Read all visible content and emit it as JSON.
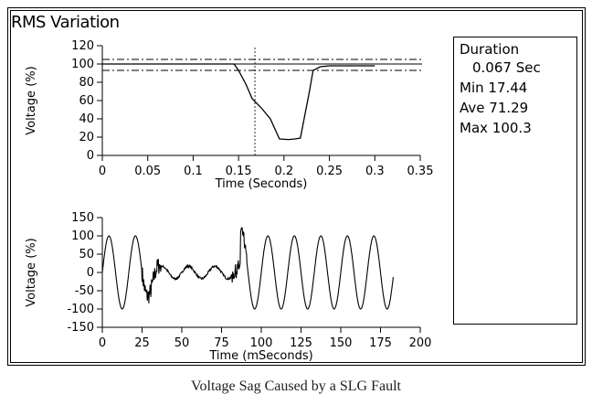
{
  "panel_title": "RMS Variation",
  "info": {
    "duration_label": "Duration",
    "duration_value": "0.067 Sec",
    "min_label": "Min",
    "min_value": "17.44",
    "ave_label": "Ave",
    "ave_value": "71.29",
    "max_label": "Max",
    "max_value": "100.3"
  },
  "caption": "Voltage Sag Caused by a SLG Fault",
  "chart_data": [
    {
      "type": "line",
      "title": "",
      "xlabel": "Time (Seconds)",
      "ylabel": "Voltage (%)",
      "xlim": [
        0,
        0.35
      ],
      "ylim": [
        0,
        120
      ],
      "x_ticks": [
        0,
        0.05,
        0.1,
        0.15,
        0.2,
        0.25,
        0.3,
        0.35
      ],
      "x_tick_labels": [
        "0",
        "0.05",
        "0.1",
        "0.15",
        "0.2",
        "0.25",
        "0.3",
        "0.35"
      ],
      "y_ticks": [
        0,
        20,
        40,
        60,
        80,
        100,
        120
      ],
      "y_tick_labels": [
        "0",
        "20",
        "40",
        "60",
        "80",
        "100",
        "120"
      ],
      "series": [
        {
          "x": [
            0,
            0.145,
            0.15,
            0.158,
            0.165,
            0.175,
            0.185,
            0.195,
            0.205,
            0.212,
            0.218,
            0.228,
            0.232,
            0.24,
            0.25,
            0.3
          ],
          "y": [
            100,
            100,
            93,
            78,
            62,
            52,
            40,
            18,
            17.44,
            18,
            19,
            70,
            93,
            97,
            98,
            98
          ]
        }
      ],
      "reference_lines": [
        {
          "y": 105,
          "style": "dash-dot"
        },
        {
          "y": 100,
          "style": "solid"
        },
        {
          "y": 93,
          "style": "dash-dot"
        }
      ],
      "cursor_x": 0.168
    },
    {
      "type": "line",
      "title": "",
      "xlabel": "Time (mSeconds)",
      "ylabel": "Voltage (%)",
      "xlim": [
        0,
        200
      ],
      "ylim": [
        -150,
        150
      ],
      "x_ticks": [
        0,
        25,
        50,
        75,
        100,
        125,
        150,
        175,
        200
      ],
      "x_tick_labels": [
        "0",
        "25",
        "50",
        "75",
        "100",
        "125",
        "150",
        "175",
        "200"
      ],
      "y_ticks": [
        -150,
        -100,
        -50,
        0,
        50,
        100,
        150
      ],
      "y_tick_labels": [
        "-150",
        "-100",
        "-50",
        "0",
        "50",
        "100",
        "150"
      ],
      "waveform": {
        "frequency_hz": 60,
        "pre_fault_amplitude": 100,
        "fault_start_ms": 25,
        "fault_end_ms": 87,
        "sag_amplitude": 17,
        "post_fault_amplitude": 100,
        "end_ms": 183
      }
    }
  ]
}
